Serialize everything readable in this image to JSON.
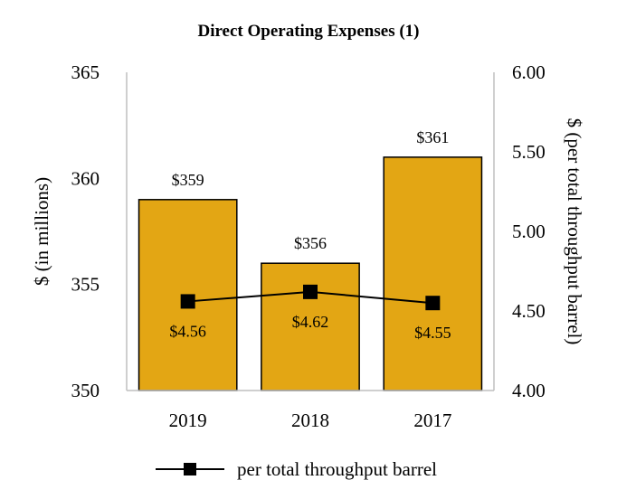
{
  "chart_data": {
    "type": "bar",
    "title": "Direct Operating Expenses (1)",
    "categories": [
      "2019",
      "2018",
      "2017"
    ],
    "bar_series": {
      "values": [
        359,
        356,
        361
      ],
      "labels": [
        "$359",
        "$356",
        "$361"
      ],
      "color": "#E3A614"
    },
    "line_series": {
      "name": "per total throughput barrel",
      "values": [
        4.56,
        4.62,
        4.55
      ],
      "labels": [
        "$4.56",
        "$4.62",
        "$4.55"
      ],
      "color": "#000000"
    },
    "ylabel": "$ (in millions)",
    "y2label": "$ (per total throughput barrel)",
    "ylim": [
      350,
      365
    ],
    "y_ticks": [
      "350",
      "355",
      "360",
      "365"
    ],
    "y2lim": [
      4.0,
      6.0
    ],
    "y2_ticks": [
      "4.00",
      "4.50",
      "5.00",
      "5.50",
      "6.00"
    ],
    "grid": false,
    "legend_position": "bottom"
  }
}
